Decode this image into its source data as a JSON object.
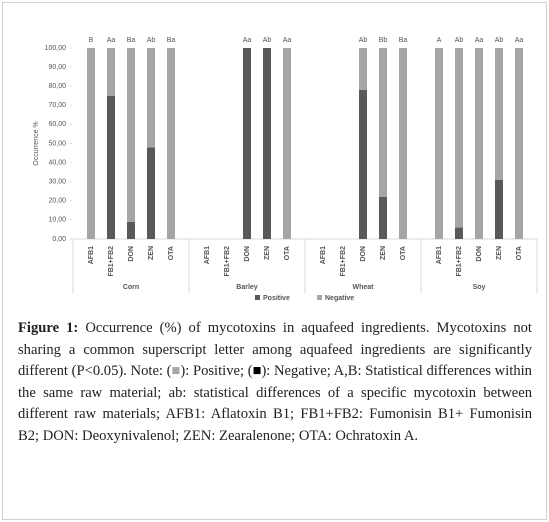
{
  "chart_data": {
    "type": "stacked_bar",
    "y_label": "Occurrence %",
    "groups": [
      "Corn",
      "Barley",
      "Wheat",
      "Soy"
    ],
    "categories": [
      "AFB1",
      "FB1+FB2",
      "DON",
      "ZEN",
      "OTA",
      "AFB1",
      "FB1+FB2",
      "DON",
      "ZEN",
      "OTA",
      "AFB1",
      "FB1+FB2",
      "DON",
      "ZEN",
      "OTA",
      "AFB1",
      "FB1+FB2",
      "DON",
      "ZEN",
      "OTA"
    ],
    "annotations": [
      "B",
      "Aa",
      "Ba",
      "Ab",
      "Ba",
      null,
      null,
      "Aa",
      "Ab",
      "Aa",
      null,
      null,
      "Ab",
      "Bb",
      "Ba",
      "A",
      "Ab",
      "Aa",
      "Ab",
      "Aa"
    ],
    "series": [
      {
        "name": "Positive",
        "color": "#595959",
        "values": [
          0,
          75,
          9,
          48,
          0,
          null,
          null,
          100,
          100,
          0,
          null,
          null,
          78,
          22,
          0,
          0,
          6,
          0,
          31,
          0
        ]
      },
      {
        "name": "Negative",
        "color": "#a6a6a6",
        "values": [
          100,
          25,
          91,
          52,
          100,
          null,
          null,
          0,
          0,
          100,
          null,
          null,
          22,
          78,
          100,
          100,
          94,
          100,
          69,
          100
        ]
      }
    ],
    "ylim": [
      0,
      100
    ],
    "yticks": [
      {
        "value": 0,
        "label": "0,00"
      },
      {
        "value": 10,
        "label": "10,00"
      },
      {
        "value": 20,
        "label": "20,00"
      },
      {
        "value": 30,
        "label": "30,00"
      },
      {
        "value": 40,
        "label": "40,00"
      },
      {
        "value": 50,
        "label": "50,00"
      },
      {
        "value": 60,
        "label": "60,00"
      },
      {
        "value": 70,
        "label": "70,00"
      },
      {
        "value": 80,
        "label": "80,00"
      },
      {
        "value": 90,
        "label": "90,00"
      },
      {
        "value": 100,
        "label": "100,00"
      }
    ],
    "legend": "bottom"
  },
  "caption": {
    "label": "Figure 1:",
    "segments": [
      " Occurrence (%) of mycotoxins in aquafeed ingredients. Mycotoxins not sharing a common superscript letter among aquafeed ingredients are significantly different (P<0.05). Note: (",
      "■",
      "): Positive; (",
      "■",
      "): Negative; A,B: Statistical differences within the same raw material; ab: statistical differences of a specific mycotoxin between different raw materials; AFB1: Aflatoxin B1; FB1+FB2: Fumonisin B1+ Fumonisin B2; DON: Deoxynivalenol; ZEN: Zearalenone; OTA: Ochratoxin A."
    ]
  }
}
